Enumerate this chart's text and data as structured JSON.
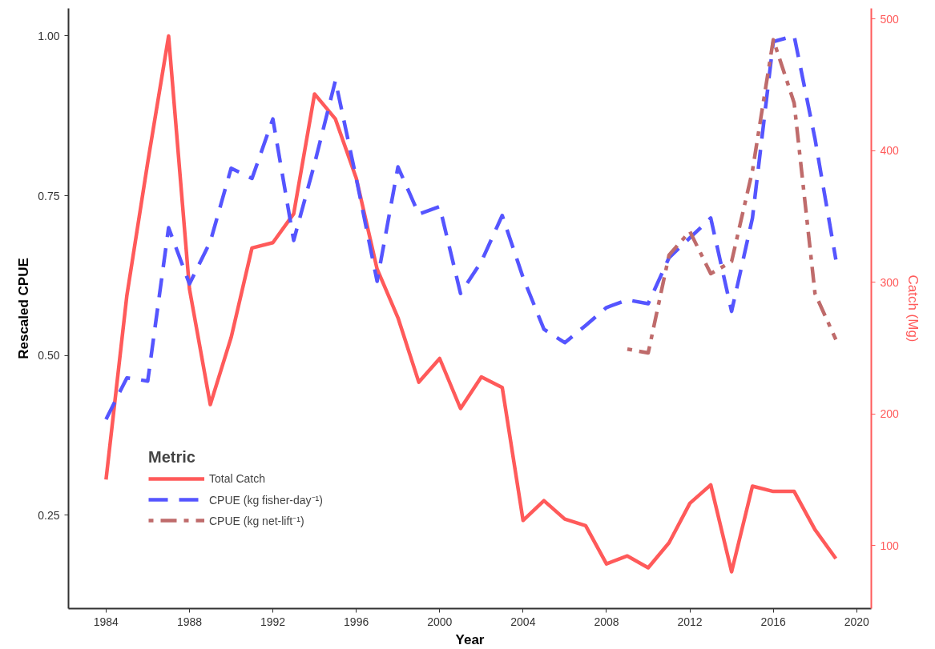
{
  "chart_data": {
    "type": "line",
    "xlabel": "Year",
    "ylabel": "Rescaled CPUE",
    "y2label": "Catch (Mg)",
    "legend_title": "Metric",
    "x": [
      1984,
      1985,
      1986,
      1987,
      1988,
      1989,
      1990,
      1991,
      1992,
      1993,
      1994,
      1995,
      1996,
      1997,
      1998,
      1999,
      2000,
      2001,
      2002,
      2003,
      2004,
      2005,
      2006,
      2007,
      2008,
      2009,
      2010,
      2011,
      2012,
      2013,
      2014,
      2015,
      2016,
      2017,
      2018,
      2019
    ],
    "series": [
      {
        "name": "Total Catch",
        "color": "#ff5a5a",
        "axis": "y2",
        "line_style": "solid",
        "values": [
          150,
          290,
          391,
          487,
          295,
          207,
          258,
          326,
          330,
          352,
          443,
          424,
          379,
          310,
          273,
          224,
          242,
          204,
          228,
          220,
          119,
          134,
          120,
          115,
          86,
          92,
          83,
          102,
          132,
          146,
          80,
          145,
          141,
          141,
          112,
          90
        ]
      },
      {
        "name": "CPUE (kg fisher-day⁻¹)",
        "color": "#5555ff",
        "line_style": "dashed",
        "values": [
          0.4,
          0.465,
          0.46,
          0.7,
          0.612,
          0.678,
          0.793,
          0.777,
          0.87,
          0.68,
          0.8,
          0.93,
          0.777,
          0.616,
          0.795,
          0.721,
          0.733,
          0.597,
          0.647,
          0.719,
          0.622,
          0.541,
          0.52,
          0.547,
          0.575,
          0.587,
          0.581,
          0.653,
          0.684,
          0.715,
          0.569,
          0.715,
          0.991,
          1.0,
          0.839,
          0.65
        ]
      },
      {
        "name": "CPUE (kg net-lift⁻¹)",
        "color": "#bf6b6b",
        "line_style": "dashdot",
        "values": [
          null,
          null,
          null,
          null,
          null,
          null,
          null,
          null,
          null,
          null,
          null,
          null,
          null,
          null,
          null,
          null,
          null,
          null,
          null,
          null,
          null,
          null,
          null,
          null,
          null,
          0.51,
          0.504,
          0.657,
          0.694,
          0.628,
          0.647,
          0.789,
          0.994,
          0.895,
          0.597,
          0.525
        ]
      }
    ],
    "xlim": [
      1982.2,
      2020.7
    ],
    "xticks": [
      1984,
      1988,
      1992,
      1996,
      2000,
      2004,
      2008,
      2012,
      2016,
      2020
    ],
    "ylim": [
      0.104,
      1.043
    ],
    "yticks": [
      {
        "value": 0.25,
        "label": "0.25"
      },
      {
        "value": 0.5,
        "label": "0.50"
      },
      {
        "value": 0.75,
        "label": "0.75"
      },
      {
        "value": 1.0,
        "label": "1.00"
      }
    ],
    "y2lim": [
      52,
      508
    ],
    "y2ticks": [
      100,
      200,
      300,
      400,
      500
    ],
    "grid": false,
    "legend": "bottom left"
  }
}
